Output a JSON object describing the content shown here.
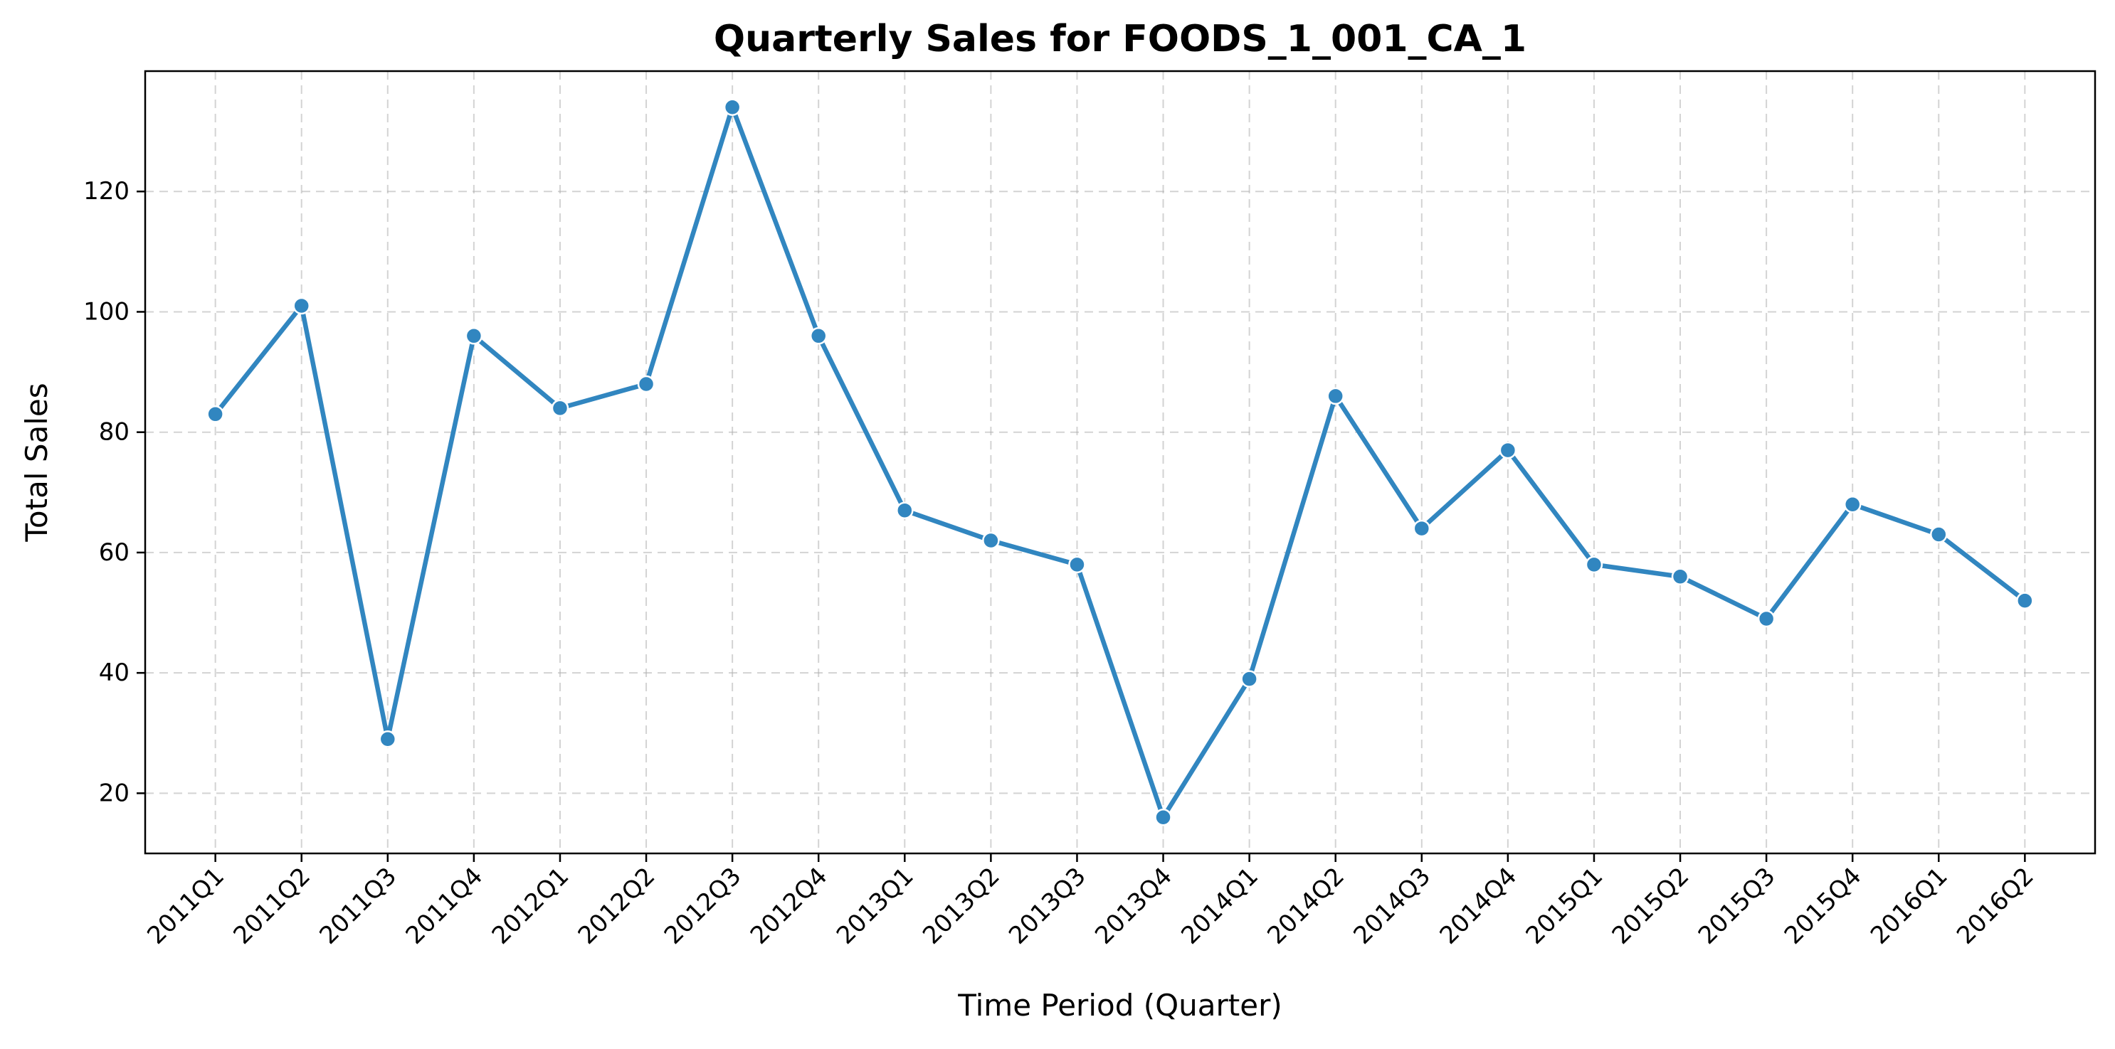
{
  "chart_data": {
    "type": "line",
    "title": "Quarterly Sales for FOODS_1_001_CA_1",
    "xlabel": "Time Period (Quarter)",
    "ylabel": "Total Sales",
    "categories": [
      "2011Q1",
      "2011Q2",
      "2011Q3",
      "2011Q4",
      "2012Q1",
      "2012Q2",
      "2012Q3",
      "2012Q4",
      "2013Q1",
      "2013Q2",
      "2013Q3",
      "2013Q4",
      "2014Q1",
      "2014Q2",
      "2014Q3",
      "2014Q4",
      "2015Q1",
      "2015Q2",
      "2015Q3",
      "2015Q4",
      "2016Q1",
      "2016Q2"
    ],
    "series": [
      {
        "values": [
          83,
          101,
          29,
          96,
          84,
          88,
          134,
          96,
          67,
          62,
          58,
          16,
          39,
          86,
          64,
          77,
          58,
          56,
          49,
          68,
          63,
          52
        ],
        "color": "#3186c0"
      }
    ],
    "ylim": [
      10,
      140
    ],
    "yticks": [
      20,
      40,
      60,
      80,
      100,
      120
    ],
    "grid": true,
    "marker": "circle"
  }
}
